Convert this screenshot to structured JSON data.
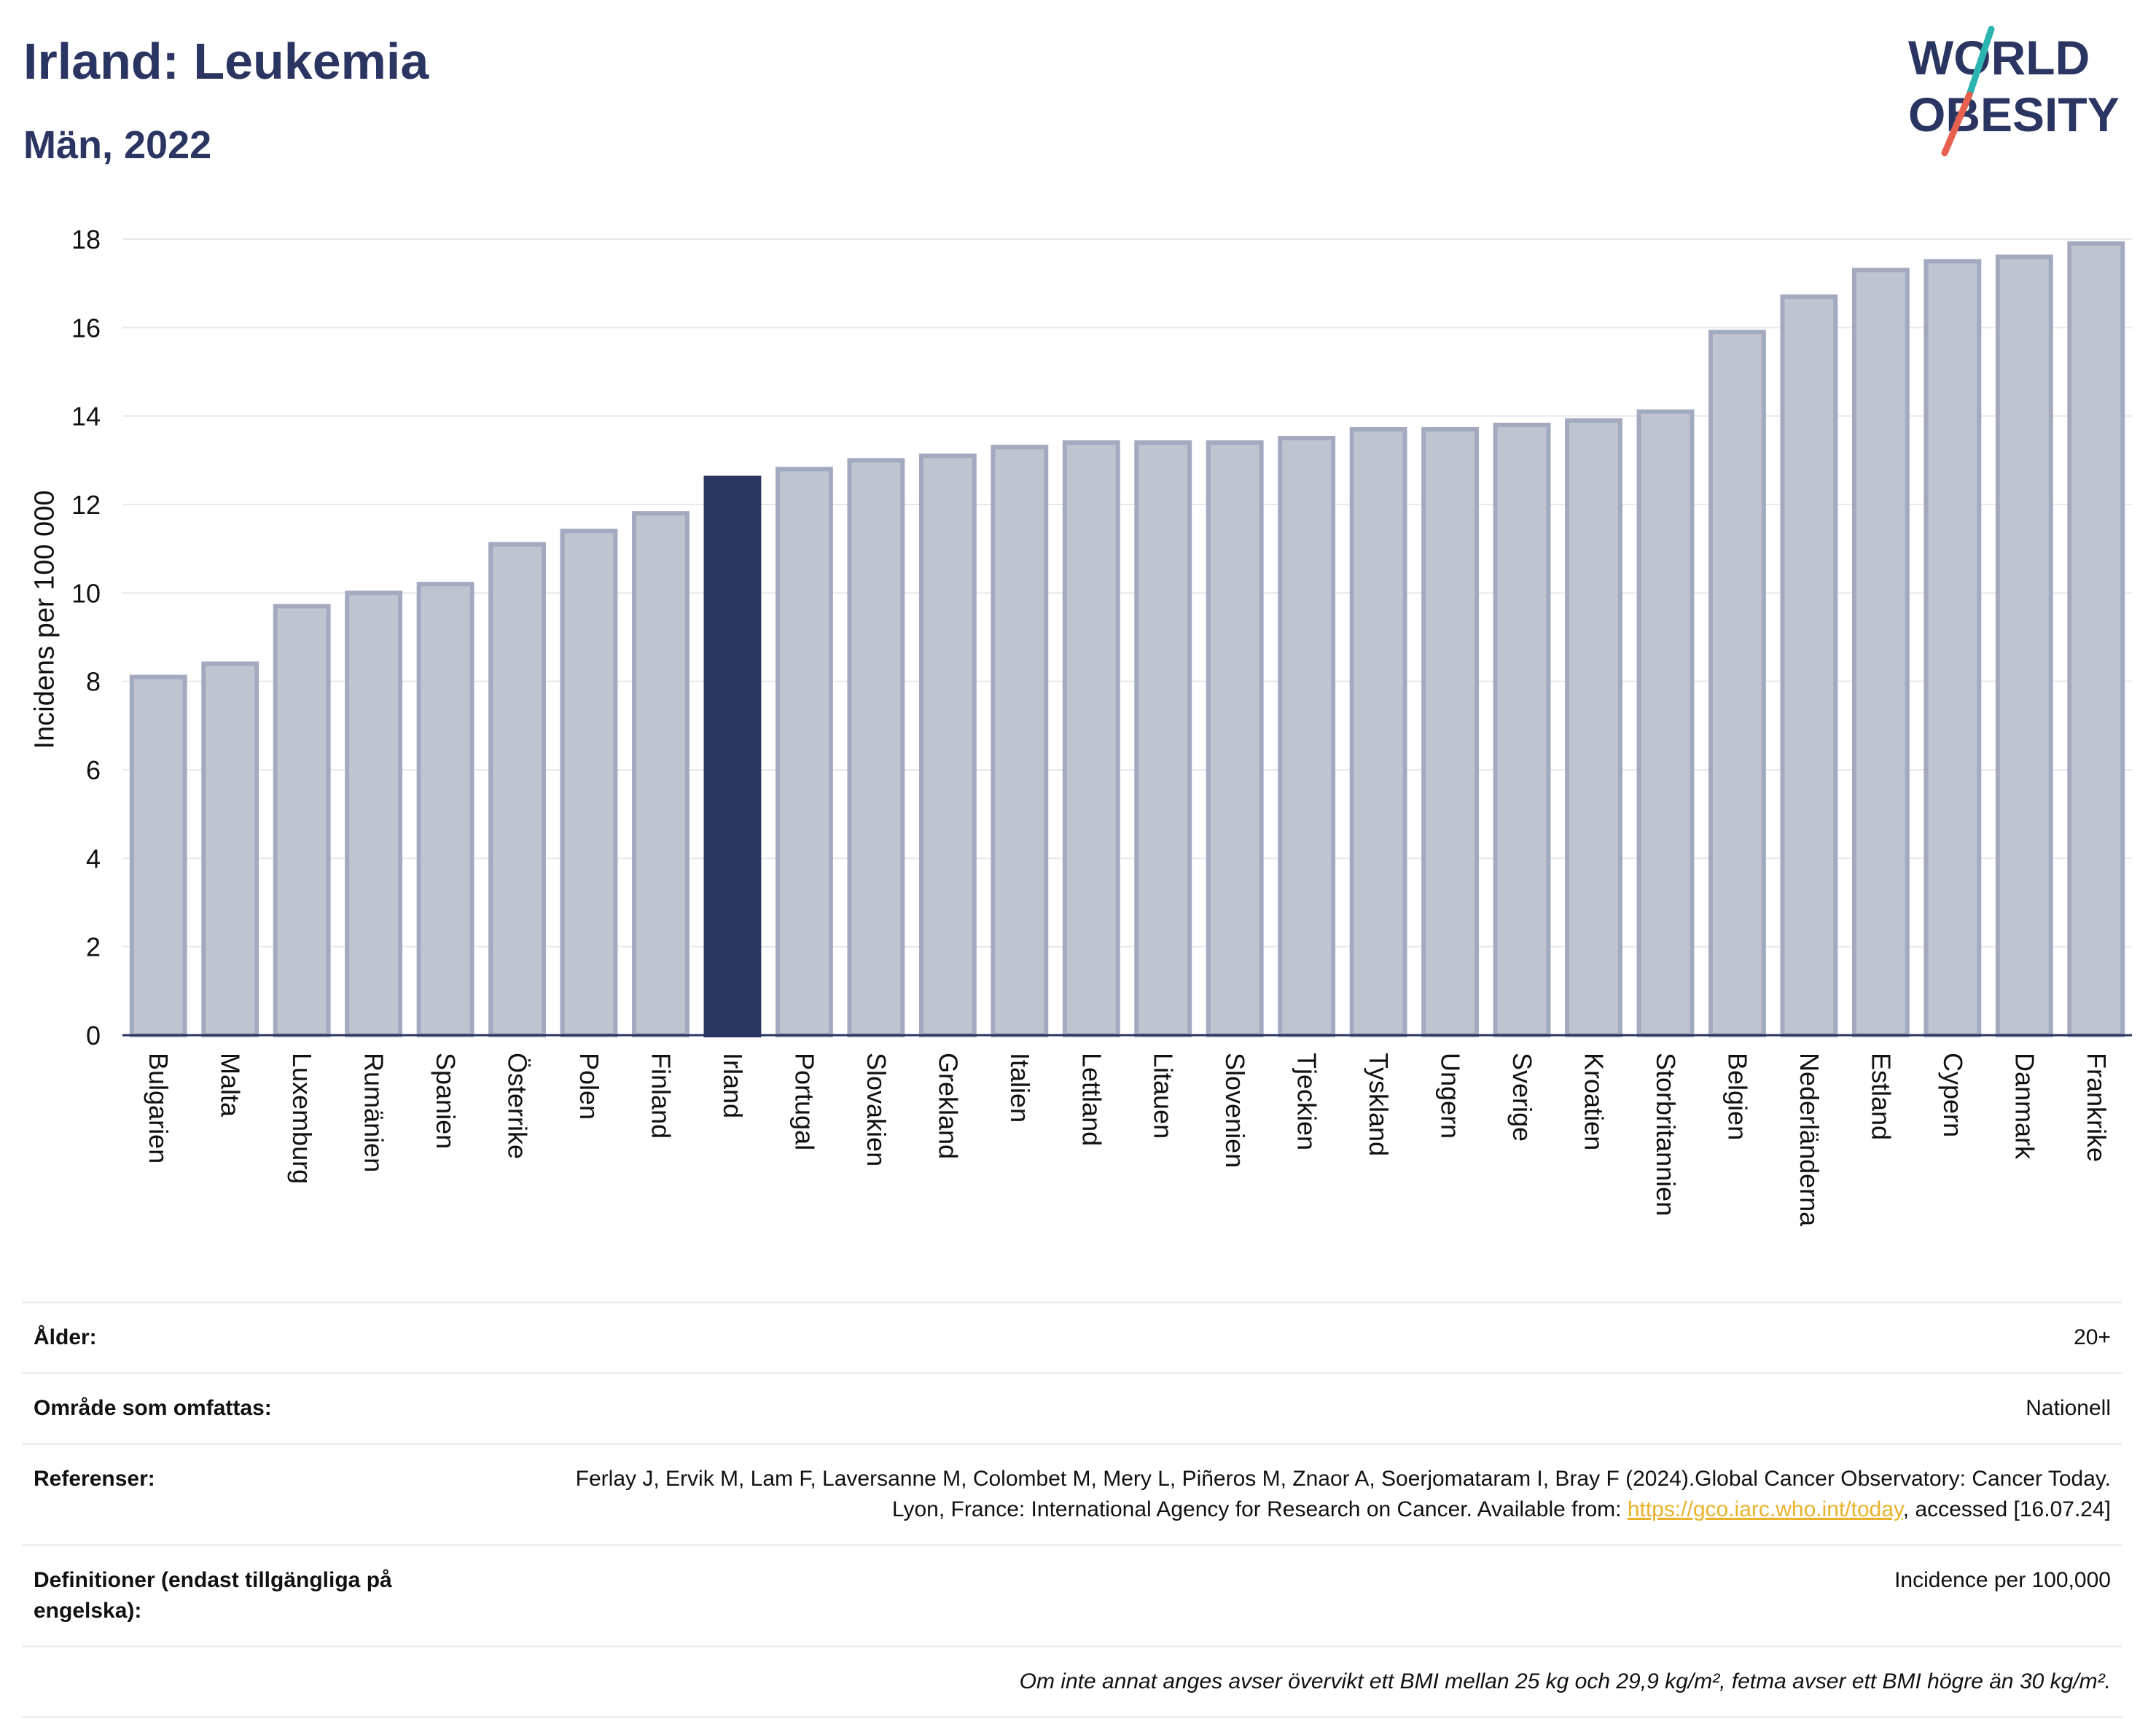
{
  "header": {
    "title": "Irland: Leukemia",
    "subtitle": "Män, 2022"
  },
  "logo": {
    "line1": "WORLD",
    "line2": "OBESITY",
    "colors": {
      "text": "#2b3562",
      "slash_teal": "#2bb5b0",
      "slash_red": "#e8614f"
    }
  },
  "chart_data": {
    "type": "bar",
    "title": "Irland: Leukemia",
    "subtitle": "Män, 2022",
    "xlabel": "",
    "ylabel": "Incidens per 100 000",
    "ylim": [
      0,
      18
    ],
    "yticks": [
      0,
      2,
      4,
      6,
      8,
      10,
      12,
      14,
      16,
      18
    ],
    "grid": true,
    "highlight": "Irland",
    "colors": {
      "bar": "#c0c4d1",
      "bar_border": "#a3aabf",
      "highlight": "#2b3562"
    },
    "categories": [
      "Bulgarien",
      "Malta",
      "Luxemburg",
      "Rumänien",
      "Spanien",
      "Österrike",
      "Polen",
      "Finland",
      "Irland",
      "Portugal",
      "Slovakien",
      "Grekland",
      "Italien",
      "Lettland",
      "Litauen",
      "Slovenien",
      "Tjeckien",
      "Tyskland",
      "Ungern",
      "Sverige",
      "Kroatien",
      "Storbritannien",
      "Belgien",
      "Nederländerna",
      "Estland",
      "Cypern",
      "Danmark",
      "Frankrike"
    ],
    "values": [
      8.1,
      8.4,
      9.7,
      10.0,
      10.2,
      11.1,
      11.4,
      11.8,
      12.6,
      12.8,
      13.0,
      13.1,
      13.3,
      13.4,
      13.4,
      13.4,
      13.5,
      13.7,
      13.7,
      13.8,
      13.9,
      14.1,
      15.9,
      16.7,
      17.3,
      17.5,
      17.6,
      17.9
    ]
  },
  "meta": {
    "age_label": "Ålder:",
    "age_value": "20+",
    "area_label": "Område som omfattas:",
    "area_value": "Nationell",
    "refs_label": "Referenser:",
    "refs_text1": "Ferlay J, Ervik M, Lam F, Laversanne M, Colombet M, Mery L, Piñeros M, Znaor A, Soerjomataram I, Bray F (2024).Global Cancer Observatory: Cancer Today. Lyon, France: International Agency for Research on Cancer. Available from: ",
    "refs_link": "https://gco.iarc.who.int/today",
    "refs_text2": ", accessed [16.07.24]",
    "defs_label": "Definitioner (endast tillgängliga på engelska):",
    "defs_value": "Incidence per 100,000",
    "note": "Om inte annat anges avser övervikt ett BMI mellan 25 kg och 29,9 kg/m², fetma avser ett BMI högre än 30 kg/m²."
  }
}
